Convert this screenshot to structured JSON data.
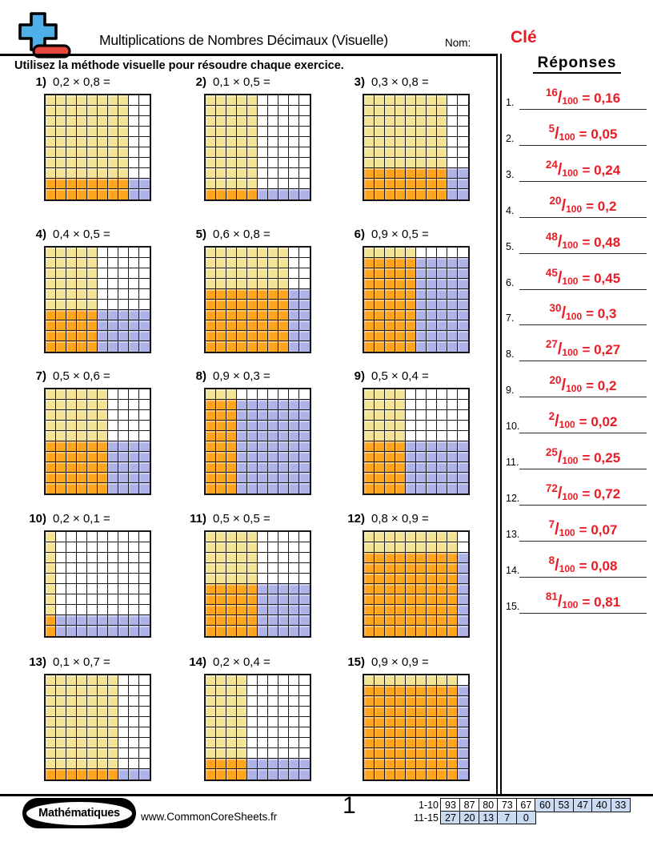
{
  "header": {
    "title": "Multiplications de Nombres Décimaux (Visuelle)",
    "name_label": "Nom:",
    "name_value": "Clé"
  },
  "instruction": "Utilisez la méthode visuelle pour résoudre chaque exercice.",
  "problems": [
    {
      "number": "1)",
      "expression": "0,2 × 0,8 =",
      "shaded_rows": 2,
      "shaded_cols": 8
    },
    {
      "number": "2)",
      "expression": "0,1 × 0,5 =",
      "shaded_rows": 1,
      "shaded_cols": 5
    },
    {
      "number": "3)",
      "expression": "0,3 × 0,8 =",
      "shaded_rows": 3,
      "shaded_cols": 8
    },
    {
      "number": "4)",
      "expression": "0,4 × 0,5 =",
      "shaded_rows": 4,
      "shaded_cols": 5
    },
    {
      "number": "5)",
      "expression": "0,6 × 0,8 =",
      "shaded_rows": 6,
      "shaded_cols": 8
    },
    {
      "number": "6)",
      "expression": "0,9 × 0,5 =",
      "shaded_rows": 9,
      "shaded_cols": 5
    },
    {
      "number": "7)",
      "expression": "0,5 × 0,6 =",
      "shaded_rows": 5,
      "shaded_cols": 6
    },
    {
      "number": "8)",
      "expression": "0,9 × 0,3 =",
      "shaded_rows": 9,
      "shaded_cols": 3
    },
    {
      "number": "9)",
      "expression": "0,5 × 0,4 =",
      "shaded_rows": 5,
      "shaded_cols": 4
    },
    {
      "number": "10)",
      "expression": "0,2 × 0,1 =",
      "shaded_rows": 2,
      "shaded_cols": 1
    },
    {
      "number": "11)",
      "expression": "0,5 × 0,5 =",
      "shaded_rows": 5,
      "shaded_cols": 5
    },
    {
      "number": "12)",
      "expression": "0,8 × 0,9 =",
      "shaded_rows": 8,
      "shaded_cols": 9
    },
    {
      "number": "13)",
      "expression": "0,1 × 0,7 =",
      "shaded_rows": 1,
      "shaded_cols": 7
    },
    {
      "number": "14)",
      "expression": "0,2 × 0,4 =",
      "shaded_rows": 2,
      "shaded_cols": 4
    },
    {
      "number": "15)",
      "expression": "0,9 × 0,9 =",
      "shaded_rows": 9,
      "shaded_cols": 9
    }
  ],
  "answers": {
    "title": "Réponses",
    "slash": "/",
    "equals": "=",
    "items": [
      {
        "number": "1.",
        "numerator": "16",
        "denominator": "100",
        "decimal": "0,16"
      },
      {
        "number": "2.",
        "numerator": "5",
        "denominator": "100",
        "decimal": "0,05"
      },
      {
        "number": "3.",
        "numerator": "24",
        "denominator": "100",
        "decimal": "0,24"
      },
      {
        "number": "4.",
        "numerator": "20",
        "denominator": "100",
        "decimal": "0,2"
      },
      {
        "number": "5.",
        "numerator": "48",
        "denominator": "100",
        "decimal": "0,48"
      },
      {
        "number": "6.",
        "numerator": "45",
        "denominator": "100",
        "decimal": "0,45"
      },
      {
        "number": "7.",
        "numerator": "30",
        "denominator": "100",
        "decimal": "0,3"
      },
      {
        "number": "8.",
        "numerator": "27",
        "denominator": "100",
        "decimal": "0,27"
      },
      {
        "number": "9.",
        "numerator": "20",
        "denominator": "100",
        "decimal": "0,2"
      },
      {
        "number": "10.",
        "numerator": "2",
        "denominator": "100",
        "decimal": "0,02"
      },
      {
        "number": "11.",
        "numerator": "25",
        "denominator": "100",
        "decimal": "0,25"
      },
      {
        "number": "12.",
        "numerator": "72",
        "denominator": "100",
        "decimal": "0,72"
      },
      {
        "number": "13.",
        "numerator": "7",
        "denominator": "100",
        "decimal": "0,07"
      },
      {
        "number": "14.",
        "numerator": "8",
        "denominator": "100",
        "decimal": "0,08"
      },
      {
        "number": "15.",
        "numerator": "81",
        "denominator": "100",
        "decimal": "0,81"
      }
    ]
  },
  "footer": {
    "brand": "Mathématiques",
    "website": "www.CommonCoreSheets.fr",
    "page": "1",
    "score_rows": [
      {
        "label": "1-10",
        "cells": [
          {
            "value": "93",
            "highlight": false
          },
          {
            "value": "87",
            "highlight": false
          },
          {
            "value": "80",
            "highlight": false
          },
          {
            "value": "73",
            "highlight": false
          },
          {
            "value": "67",
            "highlight": false
          },
          {
            "value": "60",
            "highlight": true
          },
          {
            "value": "53",
            "highlight": true
          },
          {
            "value": "47",
            "highlight": true
          },
          {
            "value": "40",
            "highlight": true
          },
          {
            "value": "33",
            "highlight": true
          }
        ]
      },
      {
        "label": "11-15",
        "cells": [
          {
            "value": "27",
            "highlight": true
          },
          {
            "value": "20",
            "highlight": true
          },
          {
            "value": "13",
            "highlight": true
          },
          {
            "value": "7",
            "highlight": true
          },
          {
            "value": "0",
            "highlight": true
          }
        ]
      }
    ]
  },
  "colors": {
    "answer_red": "#EC1B23",
    "grid_factor_cols_yellow": "#F3E394",
    "grid_overlap_orange": "#FFA41D",
    "grid_factor_rows_purple": "#AEB2E7",
    "grid_empty_white": "#FFFFFF",
    "score_highlight_blue": "#C9DAF1",
    "logo_blue": "#4FAFE8",
    "logo_red": "#E8463C"
  }
}
